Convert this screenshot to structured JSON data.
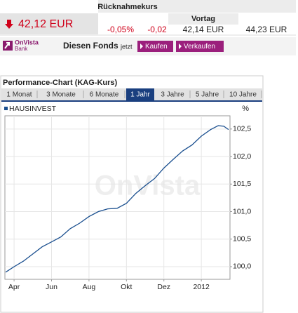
{
  "header": {
    "title": "Rücknahmekurs",
    "price": "42,12 EUR",
    "change_pct": "-0,05%",
    "change_abs": "-0,02",
    "prev_label": "Vortag",
    "prev_price": "42,14 EUR",
    "issue_price": "44,23 EUR"
  },
  "trade": {
    "logo_line1": "OnVista",
    "logo_line2": "Bank",
    "label": "Diesen Fonds",
    "hint": "jetzt",
    "buy": "Kaufen",
    "sell": "Verkaufen"
  },
  "tabs": [
    "1 Monat",
    "3 Monate",
    "6 Monate",
    "1 Jahr",
    "3 Jahre",
    "5 Jahre",
    "10 Jahre"
  ],
  "active_tab": 3,
  "chart_data": {
    "type": "line",
    "title": "Performance-Chart (KAG-Kurs)",
    "unit": "%",
    "watermark": "OnVista",
    "series": [
      {
        "name": "HAUSINVEST",
        "color": "#1a4f8f",
        "x": [
          -0.45,
          0,
          0.5,
          1,
          1.5,
          2,
          2.5,
          3,
          3.5,
          4,
          4.5,
          5,
          5.5,
          6,
          6.5,
          7,
          7.5,
          8,
          8.5,
          9,
          9.5,
          10,
          10.5,
          10.9,
          11.2,
          11.45
        ],
        "values": [
          99.9,
          100.0,
          100.1,
          100.23,
          100.36,
          100.45,
          100.54,
          100.69,
          100.79,
          100.91,
          101.0,
          101.05,
          101.06,
          101.15,
          101.33,
          101.47,
          101.6,
          101.79,
          101.95,
          102.1,
          102.21,
          102.37,
          102.49,
          102.56,
          102.55,
          102.49
        ]
      }
    ],
    "xlim": [
      -0.49,
      11.53
    ],
    "xticks": [
      {
        "value": 0,
        "label": "Apr"
      },
      {
        "value": 2,
        "label": "Jun"
      },
      {
        "value": 4,
        "label": "Aug"
      },
      {
        "value": 6,
        "label": "Okt"
      },
      {
        "value": 8,
        "label": "Dez"
      },
      {
        "value": 10,
        "label": "2012"
      }
    ],
    "ylim": [
      99.77,
      102.74
    ],
    "yticks": [
      {
        "value": 100,
        "label": "100,0"
      },
      {
        "value": 100.5,
        "label": "100,5"
      },
      {
        "value": 101,
        "label": "101,0"
      },
      {
        "value": 101.5,
        "label": "101,5"
      },
      {
        "value": 102,
        "label": "102,0"
      },
      {
        "value": 102.5,
        "label": "102,5"
      }
    ],
    "grid": true
  }
}
